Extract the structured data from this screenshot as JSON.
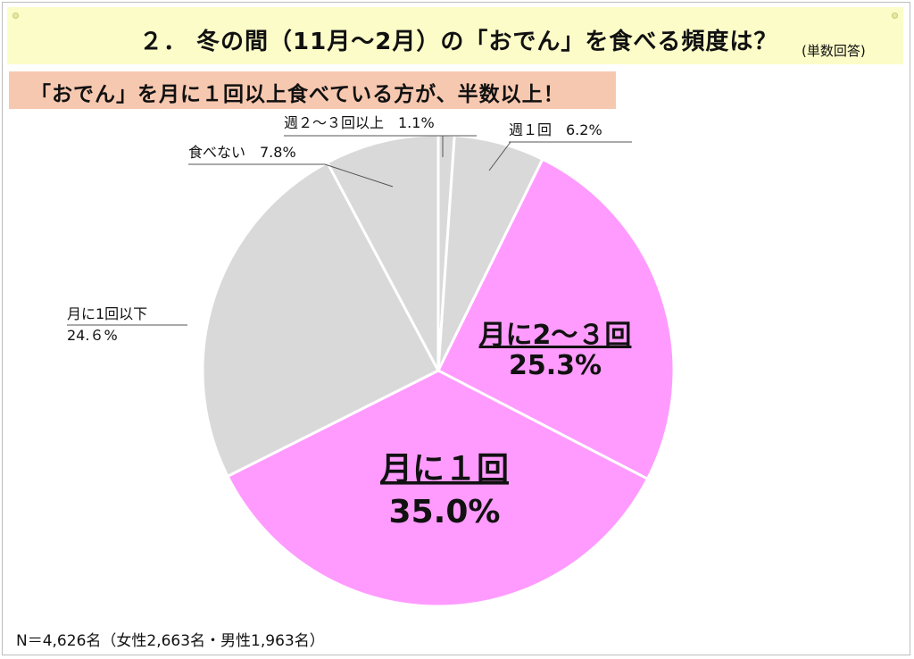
{
  "title": "２． 冬の間（11月〜2月）の「おでん」を食べる頻度は？",
  "title_note": "(単数回答)",
  "banner": "「おでん」を月に１回以上食べている方が、半数以上！",
  "footer": "N＝4,626名（女性2,663名・男性1,963名）",
  "colors": {
    "highlight": "#ff9bff",
    "base": "#d9d9d9",
    "header_bg": "#fcfcc9",
    "banner_bg": "#f7c8b0"
  },
  "chart_data": {
    "type": "pie",
    "start_angle_deg": 0,
    "slices": [
      {
        "category": "週２〜３回以上",
        "value": 1.1,
        "label_lines": [
          "週２〜３回以上　1.1%"
        ],
        "highlight": false
      },
      {
        "category": "週１回",
        "value": 6.2,
        "label_lines": [
          "週１回　6.2%"
        ],
        "highlight": false
      },
      {
        "category": "月に2〜３回",
        "value": 25.3,
        "label_lines": [
          "月に2〜３回",
          "25.3%"
        ],
        "highlight": true
      },
      {
        "category": "月に１回",
        "value": 35.0,
        "label_lines": [
          "月に１回",
          "35.0%"
        ],
        "highlight": true
      },
      {
        "category": "月に1回以下",
        "value": 24.6,
        "label_lines": [
          "月に1回以下",
          "24.６%"
        ],
        "highlight": false
      },
      {
        "category": "食べない",
        "value": 7.8,
        "label_lines": [
          "食べない　7.8%"
        ],
        "highlight": false
      }
    ]
  }
}
